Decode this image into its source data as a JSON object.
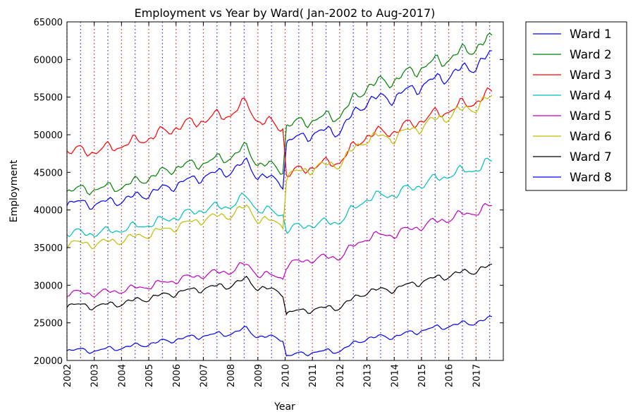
{
  "chart_data": {
    "type": "line",
    "title": "Employment vs Year by Ward( Jan-2002 to Aug-2017)",
    "xlabel": "Year",
    "ylabel": "Employment",
    "xlim": [
      2002,
      2018
    ],
    "ylim": [
      20000,
      65000
    ],
    "x_ticks": [
      "2002",
      "2003",
      "2004",
      "2005",
      "2006",
      "2007",
      "2008",
      "2009",
      "2010",
      "2011",
      "2012",
      "2013",
      "2014",
      "2015",
      "2016",
      "2017"
    ],
    "y_ticks": [
      "20000",
      "25000",
      "30000",
      "35000",
      "40000",
      "45000",
      "50000",
      "55000",
      "60000",
      "65000"
    ],
    "vertical_reference_lines": {
      "january_color": "#c0392b",
      "july_color": "#3b3bd6",
      "style": "dotted"
    },
    "legend": {
      "placement": "outside-right"
    },
    "break_year": 2010,
    "series": [
      {
        "name": "Ward 1",
        "color": "#0000ff",
        "points": [
          [
            2002,
            41000
          ],
          [
            2003,
            40800
          ],
          [
            2004,
            41300
          ],
          [
            2005,
            42200
          ],
          [
            2006,
            43400
          ],
          [
            2007,
            44500
          ],
          [
            2008,
            45200
          ],
          [
            2008.6,
            46300
          ],
          [
            2009,
            44600
          ],
          [
            2009.95,
            43600
          ],
          [
            2010.05,
            49000
          ],
          [
            2011,
            50200
          ],
          [
            2012,
            50600
          ],
          [
            2013,
            54600
          ],
          [
            2014,
            55000
          ],
          [
            2015,
            56600
          ],
          [
            2016,
            57900
          ],
          [
            2017,
            59300
          ],
          [
            2017.6,
            60600
          ]
        ]
      },
      {
        "name": "Ward 2",
        "color": "#008000",
        "points": [
          [
            2002,
            42600
          ],
          [
            2003,
            42800
          ],
          [
            2004,
            43100
          ],
          [
            2005,
            44300
          ],
          [
            2006,
            45700
          ],
          [
            2007,
            46300
          ],
          [
            2008,
            47100
          ],
          [
            2008.6,
            48300
          ],
          [
            2009,
            46200
          ],
          [
            2009.95,
            45400
          ],
          [
            2010.05,
            51200
          ],
          [
            2011,
            52000
          ],
          [
            2012,
            52600
          ],
          [
            2013,
            56500
          ],
          [
            2014,
            57300
          ],
          [
            2015,
            59000
          ],
          [
            2016,
            60200
          ],
          [
            2017,
            61700
          ],
          [
            2017.6,
            62700
          ]
        ]
      },
      {
        "name": "Ward 3",
        "color": "#ff0000",
        "points": [
          [
            2002,
            47900
          ],
          [
            2003,
            47800
          ],
          [
            2004,
            48600
          ],
          [
            2005,
            49600
          ],
          [
            2006,
            51000
          ],
          [
            2007,
            52000
          ],
          [
            2008,
            52800
          ],
          [
            2008.6,
            54200
          ],
          [
            2009,
            51900
          ],
          [
            2009.95,
            51000
          ],
          [
            2010.05,
            44700
          ],
          [
            2011,
            45800
          ],
          [
            2012,
            46500
          ],
          [
            2013,
            50000
          ],
          [
            2014,
            50500
          ],
          [
            2015,
            52000
          ],
          [
            2016,
            53300
          ],
          [
            2017,
            54500
          ],
          [
            2017.6,
            55500
          ]
        ]
      },
      {
        "name": "Ward 4",
        "color": "#00bfbf",
        "points": [
          [
            2002,
            37000
          ],
          [
            2003,
            36900
          ],
          [
            2004,
            37400
          ],
          [
            2005,
            38100
          ],
          [
            2006,
            39100
          ],
          [
            2007,
            40100
          ],
          [
            2008,
            40600
          ],
          [
            2008.6,
            41800
          ],
          [
            2009,
            40100
          ],
          [
            2009.95,
            39400
          ],
          [
            2010.05,
            37400
          ],
          [
            2011,
            38100
          ],
          [
            2012,
            38500
          ],
          [
            2013,
            41600
          ],
          [
            2014,
            42100
          ],
          [
            2015,
            43400
          ],
          [
            2016,
            44700
          ],
          [
            2017,
            45500
          ],
          [
            2017.6,
            46400
          ]
        ]
      },
      {
        "name": "Ward 5",
        "color": "#bf00bf",
        "points": [
          [
            2002,
            29000
          ],
          [
            2003,
            28900
          ],
          [
            2004,
            29300
          ],
          [
            2005,
            29900
          ],
          [
            2006,
            30700
          ],
          [
            2007,
            31400
          ],
          [
            2008,
            31900
          ],
          [
            2008.6,
            32800
          ],
          [
            2009,
            31500
          ],
          [
            2009.95,
            31000
          ],
          [
            2010.05,
            32700
          ],
          [
            2011,
            33500
          ],
          [
            2012,
            33800
          ],
          [
            2013,
            36400
          ],
          [
            2014,
            36800
          ],
          [
            2015,
            37900
          ],
          [
            2016,
            38900
          ],
          [
            2017,
            39800
          ],
          [
            2017.6,
            40500
          ]
        ]
      },
      {
        "name": "Ward 6",
        "color": "#bfbf00",
        "points": [
          [
            2002,
            35600
          ],
          [
            2003,
            35500
          ],
          [
            2004,
            36000
          ],
          [
            2005,
            36800
          ],
          [
            2006,
            37800
          ],
          [
            2007,
            38800
          ],
          [
            2008,
            39400
          ],
          [
            2008.6,
            40400
          ],
          [
            2009,
            38800
          ],
          [
            2009.95,
            38100
          ],
          [
            2010.05,
            44500
          ],
          [
            2011,
            45600
          ],
          [
            2012,
            46200
          ],
          [
            2013,
            49600
          ],
          [
            2014,
            49700
          ],
          [
            2015,
            51200
          ],
          [
            2016,
            52600
          ],
          [
            2017,
            53800
          ],
          [
            2017.6,
            54900
          ]
        ]
      },
      {
        "name": "Ward 7",
        "color": "#000000",
        "points": [
          [
            2002,
            27400
          ],
          [
            2003,
            27200
          ],
          [
            2004,
            27600
          ],
          [
            2005,
            28300
          ],
          [
            2006,
            29000
          ],
          [
            2007,
            29600
          ],
          [
            2008,
            30000
          ],
          [
            2008.6,
            30800
          ],
          [
            2009,
            29700
          ],
          [
            2009.95,
            29000
          ],
          [
            2010.05,
            26300
          ],
          [
            2011,
            26800
          ],
          [
            2012,
            27100
          ],
          [
            2013,
            29200
          ],
          [
            2014,
            29500
          ],
          [
            2015,
            30500
          ],
          [
            2016,
            31300
          ],
          [
            2017,
            32000
          ],
          [
            2017.6,
            32500
          ]
        ]
      },
      {
        "name": "Ward 8",
        "color": "#0000ff",
        "points": [
          [
            2002,
            21400
          ],
          [
            2003,
            21300
          ],
          [
            2004,
            21700
          ],
          [
            2005,
            22200
          ],
          [
            2006,
            22800
          ],
          [
            2007,
            23300
          ],
          [
            2008,
            23600
          ],
          [
            2008.6,
            24200
          ],
          [
            2009,
            23200
          ],
          [
            2009.95,
            22900
          ],
          [
            2010.05,
            20600
          ],
          [
            2011,
            21100
          ],
          [
            2012,
            21300
          ],
          [
            2013,
            23000
          ],
          [
            2014,
            23200
          ],
          [
            2015,
            24000
          ],
          [
            2016,
            24600
          ],
          [
            2017,
            25100
          ],
          [
            2017.6,
            25600
          ]
        ]
      }
    ]
  }
}
